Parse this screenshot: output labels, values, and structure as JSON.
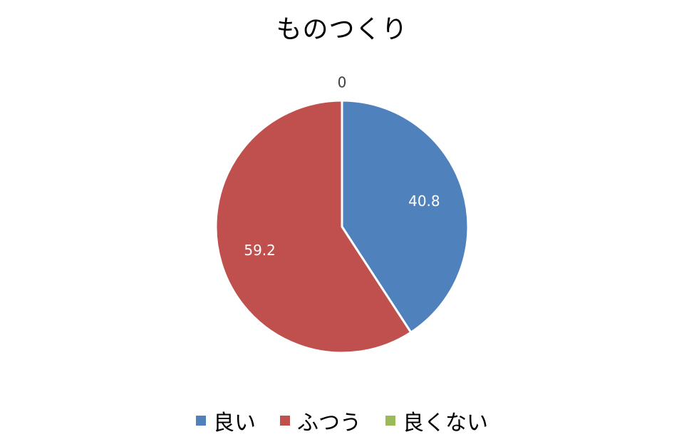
{
  "chart_data": {
    "type": "pie",
    "title": "ものつくり",
    "categories": [
      "良い",
      "ふつう",
      "良くない"
    ],
    "values": [
      40.8,
      59.2,
      0
    ],
    "data_labels": [
      "40.8",
      "59.2",
      "0"
    ],
    "colors": [
      "#4F81BD",
      "#C0504D",
      "#9BBB59"
    ],
    "label_colors": [
      "#ffffff",
      "#ffffff",
      "#404040"
    ],
    "legend_position": "bottom"
  }
}
